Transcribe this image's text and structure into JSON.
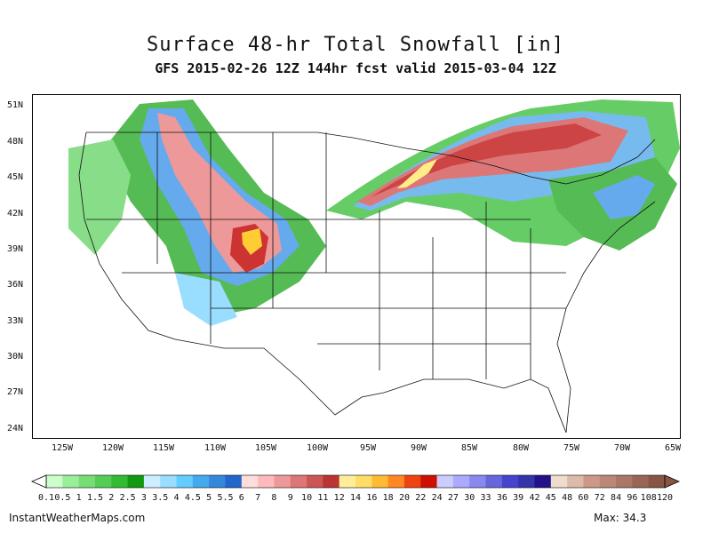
{
  "title": "Surface 48-hr Total Snowfall [in]",
  "subtitle": "GFS 2015-02-26 12Z 144hr fcst valid 2015-03-04 12Z",
  "lat_labels": [
    "51N",
    "48N",
    "45N",
    "42N",
    "39N",
    "36N",
    "33N",
    "30N",
    "27N",
    "24N"
  ],
  "lon_labels": [
    "125W",
    "120W",
    "115W",
    "110W",
    "105W",
    "100W",
    "95W",
    "90W",
    "85W",
    "80W",
    "75W",
    "70W",
    "65W"
  ],
  "colorbar": {
    "labels": [
      "0.1",
      "0.5",
      "1",
      "1.5",
      "2",
      "2.5",
      "3",
      "3.5",
      "4",
      "4.5",
      "5",
      "5.5",
      "6",
      "7",
      "8",
      "9",
      "10",
      "11",
      "12",
      "14",
      "16",
      "18",
      "20",
      "22",
      "24",
      "27",
      "30",
      "33",
      "36",
      "39",
      "42",
      "45",
      "48",
      "60",
      "72",
      "84",
      "96",
      "108",
      "120"
    ],
    "colors": [
      "#ccffcc",
      "#99ee99",
      "#77dd77",
      "#55cc55",
      "#33bb33",
      "#119911",
      "#cceeff",
      "#99ddff",
      "#66ccff",
      "#44aaee",
      "#3388dd",
      "#2266cc",
      "#ffdddd",
      "#ffbbbb",
      "#ee9999",
      "#dd7777",
      "#cc5555",
      "#bb3333",
      "#ffee99",
      "#ffdd66",
      "#ffbb33",
      "#ff8822",
      "#ee4411",
      "#cc1100",
      "#ccccff",
      "#aaaaff",
      "#8888ee",
      "#6666dd",
      "#4444cc",
      "#3333aa",
      "#221188",
      "#eeddcc",
      "#ddbbaa",
      "#cc9988",
      "#bb8877",
      "#aa7766",
      "#996655",
      "#885544"
    ]
  },
  "site": "InstantWeatherMaps.com",
  "max": "Max:  34.3"
}
